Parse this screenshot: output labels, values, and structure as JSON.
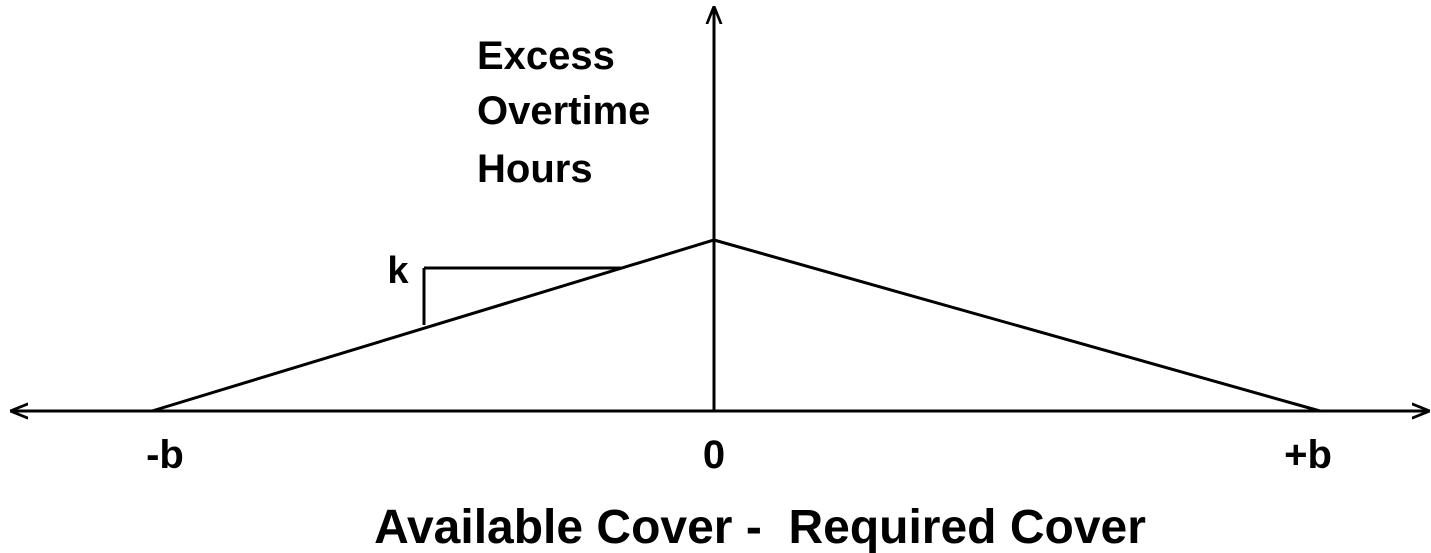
{
  "y_label": [
    "Excess",
    "Overtime",
    "Hours"
  ],
  "x_label": "Available Cover -  Required Cover",
  "x_ticks": [
    "-b",
    "0",
    "+b"
  ],
  "slope_label": "k"
}
